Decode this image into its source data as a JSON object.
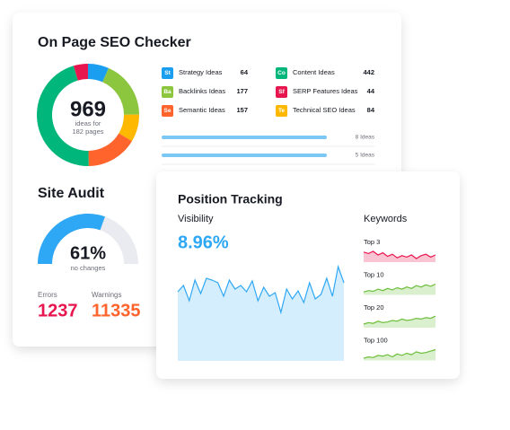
{
  "seo_checker": {
    "title": "On Page SEO Checker",
    "total": {
      "value": "969",
      "line1": "ideas for",
      "line2": "182 pages"
    },
    "ideas": [
      {
        "badge": "St",
        "label": "Strategy Ideas",
        "value": 64,
        "color": "#1a9ef0"
      },
      {
        "badge": "Ba",
        "label": "Backlinks Ideas",
        "value": 177,
        "color": "#8cc63f"
      },
      {
        "badge": "Se",
        "label": "Semantic Ideas",
        "value": 157,
        "color": "#ff642d"
      },
      {
        "badge": "Co",
        "label": "Content Ideas",
        "value": 442,
        "color": "#00b67a"
      },
      {
        "badge": "Sf",
        "label": "SERP Features Ideas",
        "value": 44,
        "color": "#e8164f"
      },
      {
        "badge": "Te",
        "label": "Technical SEO Ideas",
        "value": 84,
        "color": "#ffb800"
      }
    ],
    "donut_order": [
      0,
      1,
      5,
      2,
      3,
      4
    ],
    "progress": [
      "8 Ideas",
      "5 Ideas"
    ]
  },
  "site_audit": {
    "title": "Site Audit",
    "score": {
      "value": 61,
      "label": "61%",
      "caption": "no changes",
      "color": "#2ea8f5"
    },
    "errors": {
      "label": "Errors",
      "value": 1237,
      "color": "#e8164f"
    },
    "warnings": {
      "label": "Warnings",
      "value": 11335,
      "color": "#ff642d"
    }
  },
  "position_tracking": {
    "title": "Position Tracking",
    "visibility": {
      "label": "Visibility",
      "value": "8.96%"
    },
    "visibility_chart": {
      "type": "area",
      "color": "#2ea8f5",
      "ylim": [
        0,
        110
      ],
      "values": [
        77,
        84,
        67,
        90,
        75,
        92,
        90,
        87,
        72,
        90,
        80,
        84,
        77,
        89,
        67,
        82,
        72,
        76,
        54,
        80,
        69,
        78,
        65,
        87,
        69,
        74,
        92,
        72,
        105,
        87
      ]
    },
    "keywords": {
      "title": "Keywords",
      "ylim": [
        0,
        20
      ],
      "series": [
        {
          "name": "Top 3",
          "color": "#e8164f",
          "values": [
            14,
            12,
            15,
            10,
            13,
            8,
            11,
            6,
            9,
            7,
            10,
            5,
            9,
            11,
            7,
            10
          ]
        },
        {
          "name": "Top 10",
          "color": "#6cbf3a",
          "values": [
            4,
            6,
            5,
            8,
            6,
            9,
            7,
            10,
            8,
            11,
            9,
            13,
            11,
            14,
            12,
            15
          ]
        },
        {
          "name": "Top 20",
          "color": "#6cbf3a",
          "values": [
            5,
            7,
            6,
            9,
            7,
            8,
            10,
            9,
            12,
            10,
            11,
            13,
            12,
            14,
            13,
            16
          ]
        },
        {
          "name": "Top 100",
          "color": "#6cbf3a",
          "values": [
            3,
            5,
            4,
            7,
            6,
            8,
            5,
            9,
            7,
            10,
            8,
            12,
            10,
            11,
            13,
            15
          ]
        }
      ]
    }
  }
}
